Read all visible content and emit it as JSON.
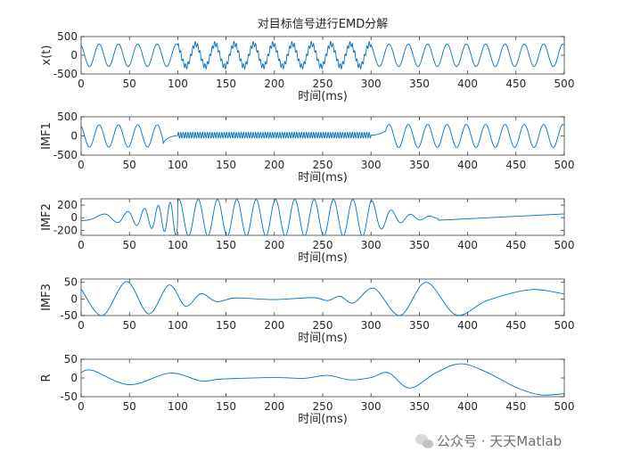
{
  "colors": {
    "line": "#0072bd",
    "axis": "#262626",
    "bg": "#ffffff",
    "watermark": "#8a8a8a"
  },
  "chart_data": [
    {
      "type": "line",
      "title": "对目标信号进行EMD分解",
      "xlabel": "时间(ms)",
      "ylabel": "x(t)",
      "xlim": [
        0,
        500
      ],
      "ylim": [
        -500,
        500
      ],
      "xticks": [
        0,
        50,
        100,
        150,
        200,
        250,
        300,
        350,
        400,
        450,
        500
      ],
      "yticks": [
        -500,
        0,
        500
      ],
      "series": [
        {
          "segments": [
            {
              "x_range": [
                0,
                500
              ],
              "shape": "sine",
              "frequency_per_ms": 0.05,
              "amplitude": 300
            },
            {
              "x_range": [
                100,
                300
              ],
              "shape": "sine",
              "frequency_per_ms": 0.4,
              "amplitude": 70,
              "note": "added high-frequency component"
            }
          ]
        }
      ]
    },
    {
      "type": "line",
      "xlabel": "时间(ms)",
      "ylabel": "IMF1",
      "xlim": [
        0,
        500
      ],
      "ylim": [
        -500,
        500
      ],
      "xticks": [
        0,
        50,
        100,
        150,
        200,
        250,
        300,
        350,
        400,
        450,
        500
      ],
      "yticks": [
        -500,
        0,
        500
      ],
      "series": [
        {
          "segments": [
            {
              "x_range": [
                0,
                85
              ],
              "shape": "sine",
              "frequency_per_ms": 0.05,
              "amplitude": 290
            },
            {
              "x_range": [
                85,
                100
              ],
              "shape": "decay",
              "from": -190,
              "to": 20
            },
            {
              "x_range": [
                100,
                300
              ],
              "shape": "sine",
              "frequency_per_ms": 0.4,
              "amplitude": 75,
              "offset": 20
            },
            {
              "x_range": [
                300,
                315
              ],
              "shape": "ramp"
            },
            {
              "x_range": [
                315,
                500
              ],
              "shape": "sine",
              "frequency_per_ms": 0.05,
              "amplitude": 300
            }
          ]
        }
      ]
    },
    {
      "type": "line",
      "xlabel": "时间(ms)",
      "ylabel": "IMF2",
      "xlim": [
        0,
        500
      ],
      "ylim": [
        -280,
        300
      ],
      "xticks": [
        0,
        50,
        100,
        150,
        200,
        250,
        300,
        350,
        400,
        450,
        500
      ],
      "yticks": [
        -200,
        0,
        200
      ],
      "series": [
        {
          "segments": [
            {
              "x_range": [
                0,
                100
              ],
              "shape": "growing sine",
              "amplitude_range": [
                45,
                280
              ]
            },
            {
              "x_range": [
                100,
                300
              ],
              "shape": "sine",
              "frequency_per_ms": 0.05,
              "amplitude": 290
            },
            {
              "x_range": [
                300,
                370
              ],
              "shape": "decaying sine",
              "amplitude_range": [
                280,
                40
              ]
            },
            {
              "x_range": [
                370,
                500
              ],
              "shape": "drift",
              "from": -40,
              "to": 60
            }
          ]
        }
      ]
    },
    {
      "type": "line",
      "xlabel": "时间(ms)",
      "ylabel": "IMF3",
      "xlim": [
        0,
        500
      ],
      "ylim": [
        -50,
        60
      ],
      "xticks": [
        0,
        50,
        100,
        150,
        200,
        250,
        300,
        350,
        400,
        450,
        500
      ],
      "yticks": [
        -50,
        0,
        50
      ],
      "series": [
        {
          "points": [
            [
              0,
              30
            ],
            [
              22,
              -50
            ],
            [
              47,
              52
            ],
            [
              70,
              -45
            ],
            [
              91,
              42
            ],
            [
              108,
              -22
            ],
            [
              124,
              16
            ],
            [
              140,
              -8
            ],
            [
              160,
              3
            ],
            [
              200,
              -2
            ],
            [
              240,
              4
            ],
            [
              255,
              -5
            ],
            [
              268,
              8
            ],
            [
              282,
              -12
            ],
            [
              303,
              32
            ],
            [
              330,
              -54
            ],
            [
              357,
              50
            ],
            [
              388,
              -48
            ],
            [
              420,
              -5
            ],
            [
              465,
              28
            ],
            [
              500,
              15
            ]
          ]
        }
      ]
    },
    {
      "type": "line",
      "xlabel": "时间(ms)",
      "ylabel": "R",
      "xlim": [
        0,
        500
      ],
      "ylim": [
        -50,
        50
      ],
      "xticks": [
        0,
        50,
        100,
        150,
        200,
        250,
        300,
        350,
        400,
        450,
        500
      ],
      "yticks": [
        -50,
        0,
        50
      ],
      "series": [
        {
          "points": [
            [
              0,
              15
            ],
            [
              12,
              20
            ],
            [
              50,
              -18
            ],
            [
              92,
              13
            ],
            [
              124,
              -8
            ],
            [
              145,
              -3
            ],
            [
              200,
              1
            ],
            [
              230,
              -1
            ],
            [
              255,
              7
            ],
            [
              278,
              -5
            ],
            [
              300,
              1
            ],
            [
              318,
              14
            ],
            [
              340,
              -27
            ],
            [
              368,
              15
            ],
            [
              393,
              38
            ],
            [
              420,
              15
            ],
            [
              450,
              -25
            ],
            [
              475,
              -45
            ],
            [
              500,
              -42
            ]
          ]
        }
      ]
    }
  ],
  "watermark": {
    "text": "公众号 · 天天Matlab"
  }
}
